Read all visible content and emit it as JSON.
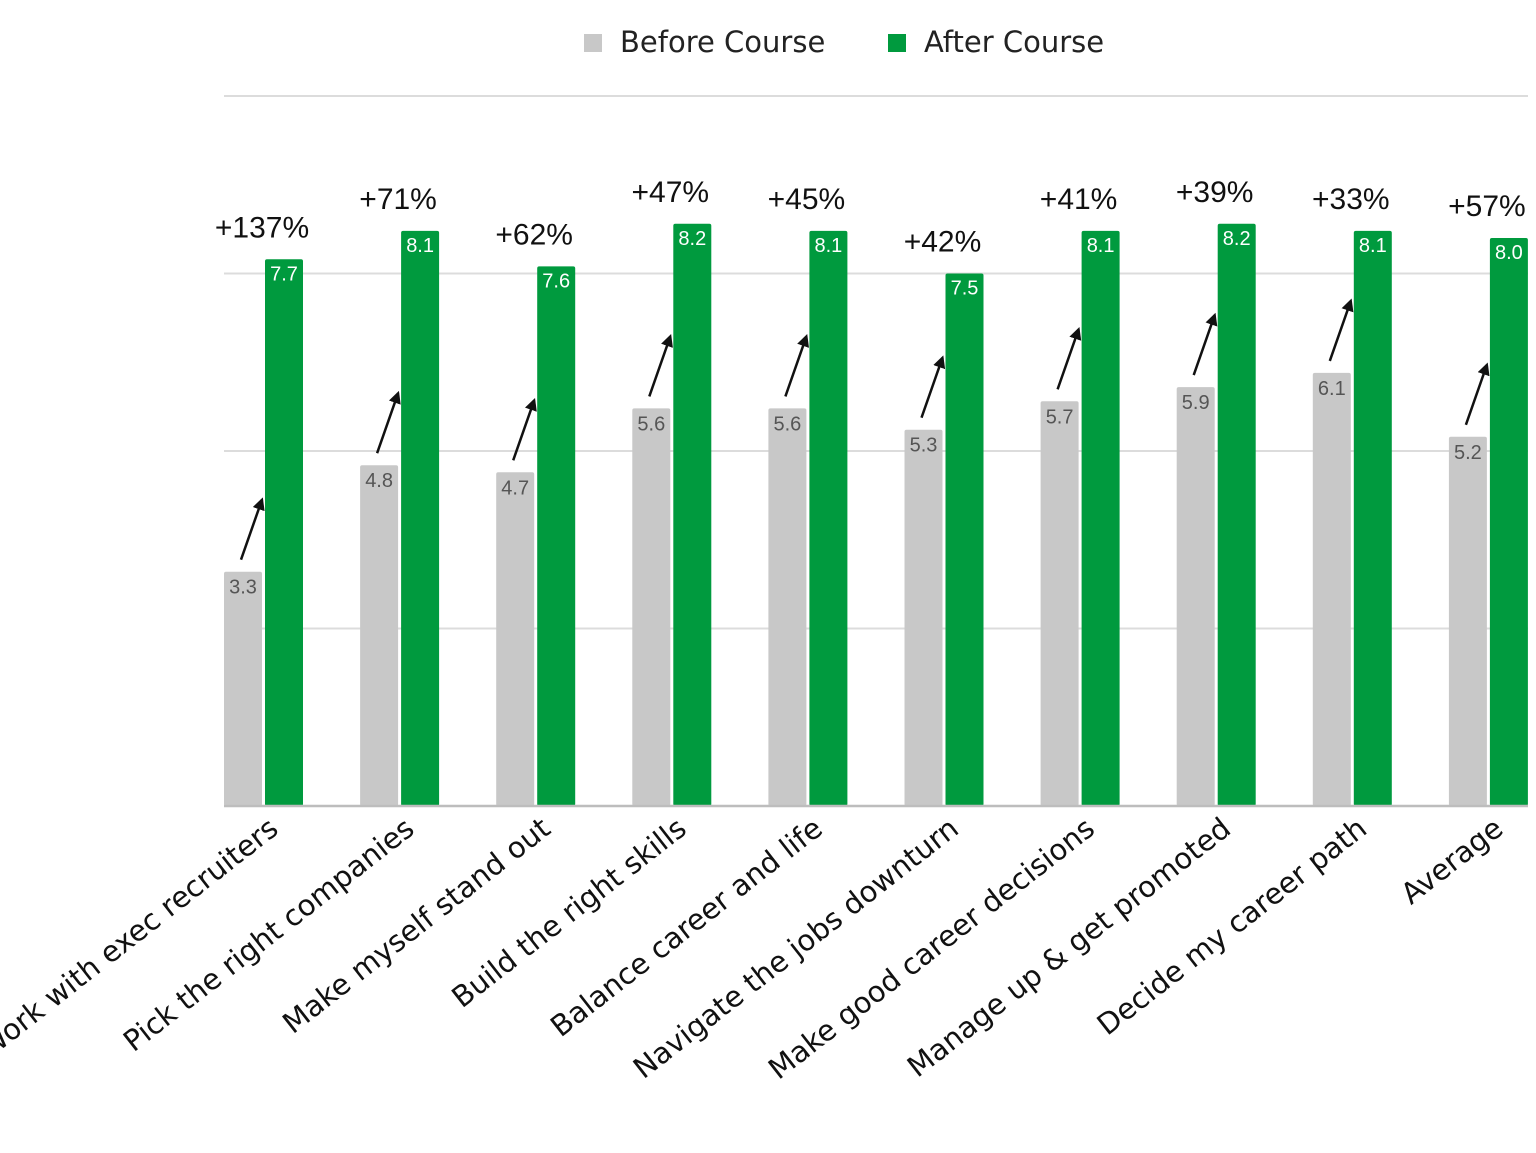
{
  "chart_data": {
    "type": "bar",
    "categories": [
      "Work with exec recruiters",
      "Pick the right companies",
      "Make myself stand out",
      "Build the right skills",
      "Balance career and life",
      "Navigate the jobs downturn",
      "Make good career decisions",
      "Manage up & get promoted",
      "Decide my career path",
      "Average"
    ],
    "series": [
      {
        "name": "Before Course",
        "color": "#c8c8c8",
        "values": [
          3.3,
          4.8,
          4.7,
          5.6,
          5.6,
          5.3,
          5.7,
          5.9,
          6.1,
          5.2
        ],
        "labels": [
          "3.3",
          "4.8",
          "4.7",
          "5.6",
          "5.6",
          "5.3",
          "5.7",
          "5.9",
          "6.1",
          "5.2"
        ]
      },
      {
        "name": "After Course",
        "color": "#009a3e",
        "values": [
          7.7,
          8.1,
          7.6,
          8.2,
          8.1,
          7.5,
          8.1,
          8.2,
          8.1,
          8.0
        ],
        "labels": [
          "7.7",
          "8.1",
          "7.6",
          "8.2",
          "8.1",
          "7.5",
          "8.1",
          "8.2",
          "8.1",
          "8.0"
        ]
      }
    ],
    "change_labels": [
      "+137%",
      "+71%",
      "+62%",
      "+47%",
      "+45%",
      "+42%",
      "+41%",
      "+39%",
      "+33%",
      "+57%"
    ],
    "ylim": [
      0,
      10
    ],
    "grid": true,
    "legend": "top-center",
    "title": "",
    "xlabel": "",
    "ylabel": ""
  }
}
